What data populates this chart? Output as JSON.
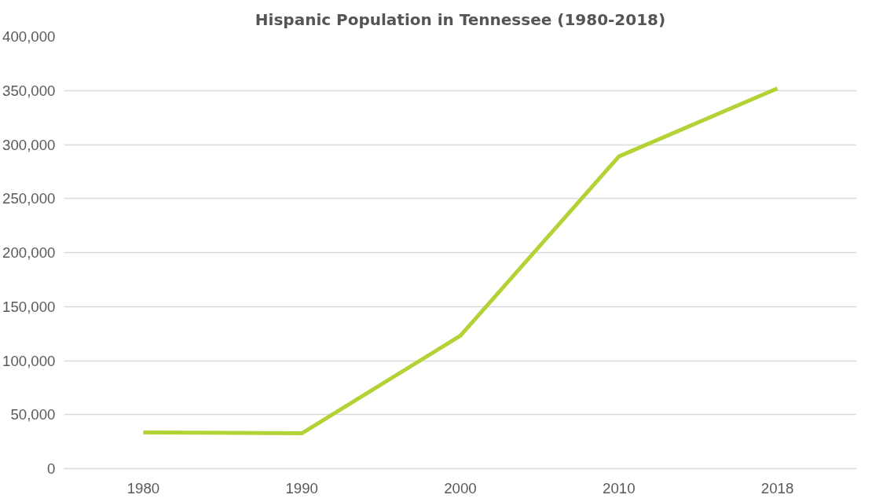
{
  "chart_data": {
    "type": "line",
    "title": "Hispanic Population in Tennessee (1980-2018)",
    "categories": [
      "1980",
      "1990",
      "2000",
      "2010",
      "2018"
    ],
    "series": [
      {
        "color": "#b2d235",
        "values": [
          33500,
          32700,
          123000,
          289000,
          352000
        ]
      }
    ],
    "ylim": [
      0,
      400000
    ],
    "yticks": [
      0,
      {
        "value": 50000,
        "label": "50,000"
      },
      {
        "value": 100000,
        "label": "100,000"
      },
      {
        "value": 150000,
        "label": "150,000"
      },
      {
        "value": 200000,
        "label": "200,000"
      },
      {
        "value": 250000,
        "label": "250,000"
      },
      {
        "value": 300000,
        "label": "300,000"
      },
      {
        "value": 350000,
        "label": "350,000"
      },
      {
        "value": 400000,
        "label": "400,000"
      }
    ],
    "grid": "y",
    "marker": "none",
    "line_style": "solid"
  }
}
